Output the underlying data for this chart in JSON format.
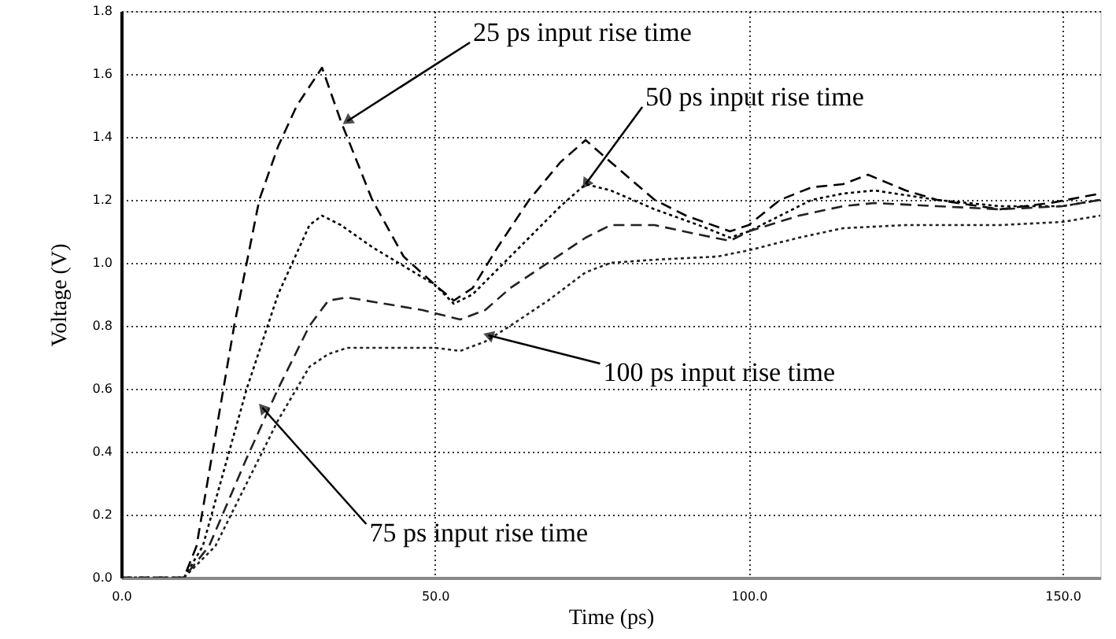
{
  "chart_data": {
    "type": "line",
    "xlabel": "Time (ps)",
    "ylabel": "Voltage (V)",
    "xlim": [
      0,
      156
    ],
    "ylim": [
      0,
      1.8
    ],
    "xticks": [
      {
        "value": 0,
        "label": "0.0"
      },
      {
        "value": 50,
        "label": "50.0"
      },
      {
        "value": 100,
        "label": "100.0"
      },
      {
        "value": 150,
        "label": "150.0"
      }
    ],
    "yticks": [
      {
        "value": 0,
        "label": "0.0"
      },
      {
        "value": 0.2,
        "label": "0.2"
      },
      {
        "value": 0.4,
        "label": "0.4"
      },
      {
        "value": 0.6,
        "label": "0.6"
      },
      {
        "value": 0.8,
        "label": "0.8"
      },
      {
        "value": 1.0,
        "label": "1.0"
      },
      {
        "value": 1.2,
        "label": "1.2"
      },
      {
        "value": 1.4,
        "label": "1.4"
      },
      {
        "value": 1.6,
        "label": "1.6"
      },
      {
        "value": 1.8,
        "label": "1.8"
      }
    ],
    "grid": true,
    "legend": false,
    "series": [
      {
        "color": "#000000",
        "line_style": "dashed",
        "x": [
          0,
          10,
          12,
          15,
          18,
          22,
          25,
          28,
          32,
          35,
          40,
          45,
          50,
          53,
          56,
          60,
          65,
          70,
          74,
          78,
          85,
          90,
          97,
          100,
          105,
          110,
          115,
          119,
          125,
          130,
          140,
          148,
          156
        ],
        "values": [
          0,
          0,
          0.1,
          0.45,
          0.8,
          1.2,
          1.37,
          1.5,
          1.62,
          1.45,
          1.2,
          1.02,
          0.93,
          0.88,
          0.92,
          1.05,
          1.2,
          1.32,
          1.39,
          1.32,
          1.2,
          1.15,
          1.1,
          1.12,
          1.2,
          1.24,
          1.25,
          1.28,
          1.23,
          1.2,
          1.17,
          1.19,
          1.22
        ]
      },
      {
        "color": "#000000",
        "line_style": "dotted",
        "x": [
          0,
          10,
          13,
          20,
          25,
          30,
          32,
          35,
          40,
          45,
          50,
          53,
          56,
          60,
          65,
          70,
          74,
          78,
          85,
          92,
          97,
          100,
          105,
          110,
          115,
          120,
          130,
          140,
          150,
          156
        ],
        "values": [
          0,
          0,
          0.1,
          0.6,
          0.9,
          1.12,
          1.15,
          1.12,
          1.05,
          0.99,
          0.93,
          0.87,
          0.9,
          0.98,
          1.08,
          1.18,
          1.25,
          1.23,
          1.17,
          1.12,
          1.08,
          1.1,
          1.15,
          1.2,
          1.22,
          1.23,
          1.2,
          1.18,
          1.18,
          1.2
        ]
      },
      {
        "color": "#222222",
        "line_style": "dashed",
        "x": [
          0,
          10,
          14,
          20,
          25,
          30,
          33,
          36,
          42,
          48,
          54,
          58,
          62,
          68,
          74,
          78,
          85,
          92,
          97,
          100,
          108,
          115,
          120,
          130,
          140,
          150,
          156
        ],
        "values": [
          0,
          0,
          0.1,
          0.38,
          0.6,
          0.8,
          0.88,
          0.89,
          0.87,
          0.85,
          0.82,
          0.85,
          0.92,
          1.0,
          1.08,
          1.12,
          1.12,
          1.09,
          1.07,
          1.1,
          1.15,
          1.18,
          1.19,
          1.18,
          1.17,
          1.18,
          1.2
        ]
      },
      {
        "color": "#222222",
        "line_style": "dotted",
        "x": [
          0,
          10,
          15,
          20,
          25,
          30,
          33,
          36,
          45,
          50,
          54,
          58,
          62,
          68,
          74,
          78,
          85,
          95,
          100,
          108,
          115,
          125,
          140,
          150,
          156
        ],
        "values": [
          0,
          0,
          0.1,
          0.3,
          0.5,
          0.67,
          0.71,
          0.73,
          0.73,
          0.73,
          0.72,
          0.75,
          0.8,
          0.88,
          0.97,
          1.0,
          1.01,
          1.02,
          1.04,
          1.08,
          1.11,
          1.12,
          1.12,
          1.13,
          1.15
        ]
      }
    ],
    "annotations": [
      {
        "text": "25 ps input rise time",
        "x": 36,
        "y": 1.45
      },
      {
        "text": "50 ps input rise time",
        "x": 74,
        "y": 1.25
      },
      {
        "text": "100 ps input rise time",
        "x": 58.5,
        "y": 0.77
      },
      {
        "text": "75 ps input rise time",
        "x": 22.5,
        "y": 0.54
      }
    ]
  }
}
